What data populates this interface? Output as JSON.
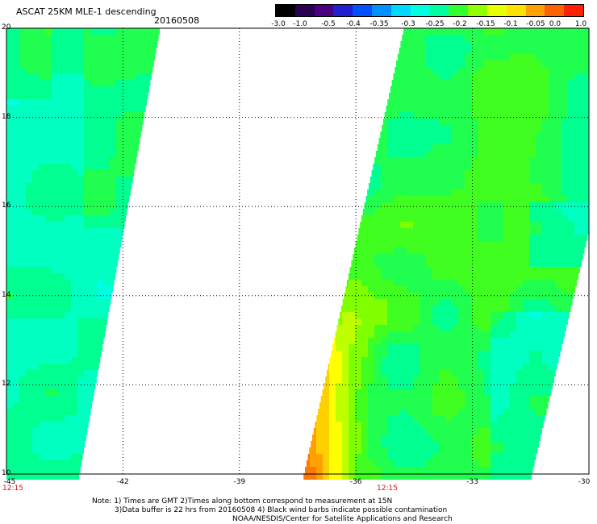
{
  "header": {
    "title": "ASCAT 25KM MLE-1 descending",
    "date": "20160508"
  },
  "colorbar": {
    "labels": [
      "-3.0",
      "-1.0",
      "-0.5",
      "-0.4",
      "-0.35",
      "-0.3",
      "-0.25",
      "-0.2",
      "-0.15",
      "-0.1",
      "-0.05",
      "0.0",
      "1.0"
    ],
    "colors": [
      "#000000",
      "#2a0050",
      "#4b0082",
      "#2020d0",
      "#0050ff",
      "#0090ff",
      "#00d8ff",
      "#00ffe0",
      "#00ffa0",
      "#30ff30",
      "#90ff00",
      "#e8ff00",
      "#ffe000",
      "#ffa000",
      "#ff6000",
      "#ff2000"
    ]
  },
  "map": {
    "lat_labels": [
      "20",
      "18",
      "16",
      "14",
      "12",
      "10"
    ],
    "lon_labels": [
      "-45",
      "-42",
      "-39",
      "-36",
      "-33",
      "-30"
    ],
    "time_labels": [
      "12:15",
      "12:15"
    ]
  },
  "notes": {
    "line1": "Note: 1) Times are GMT 2)Times along bottom correspond to measurement at 15N",
    "line2": "3)Data buffer is 22 hrs from 20160508 4) Black wind barbs indicate possible contamination",
    "line3": "NOAA/NESDIS/Center for Satellite Applications and Research"
  }
}
